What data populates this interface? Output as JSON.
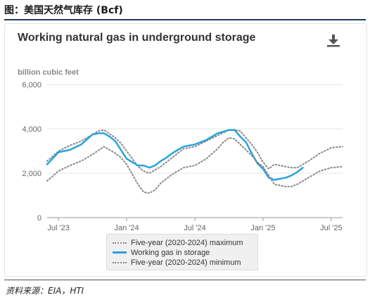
{
  "figure_title": "图：美国天然气库存 (Bcf)",
  "source": "资料来源：EIA，HTI",
  "icons": {
    "download": "download-icon"
  },
  "colors": {
    "storage_line": "#29a3dd",
    "range_lines": "#888888",
    "grid": "#e6e6e6",
    "axis_text": "#666666"
  },
  "chart_data": {
    "type": "line",
    "title": "Working natural gas in underground storage",
    "ylabel": "billion cubic feet",
    "ylim": [
      0,
      6000
    ],
    "yticks": [
      0,
      2000,
      4000,
      6000
    ],
    "ytick_labels": [
      "0",
      "2,000",
      "4,000",
      "6,000"
    ],
    "xlim": [
      0,
      26
    ],
    "xticks": [
      {
        "label": "Jul '23",
        "x": 1
      },
      {
        "label": "Jan '24",
        "x": 7
      },
      {
        "label": "Jul '24",
        "x": 13
      },
      {
        "label": "Jan '25",
        "x": 19
      },
      {
        "label": "Jul '25",
        "x": 25
      }
    ],
    "grid": true,
    "legend_position": "bottom",
    "series": [
      {
        "name": "Five-year (2020-2024) maximum",
        "style": "dotted",
        "x": [
          0,
          1,
          2,
          3,
          4,
          4.5,
          5,
          6,
          6.5,
          7,
          7.5,
          8,
          8.5,
          9,
          10,
          11,
          12,
          13,
          14,
          15,
          16,
          16.5,
          17,
          17.5,
          18,
          18.5,
          19,
          19.5,
          20,
          20.5,
          21,
          21.5,
          22,
          23,
          24,
          25,
          26
        ],
        "y": [
          2550,
          3000,
          3250,
          3450,
          3750,
          3900,
          3950,
          3600,
          3350,
          3000,
          2650,
          2300,
          2100,
          2000,
          2300,
          2700,
          3100,
          3200,
          3450,
          3700,
          3950,
          3950,
          3900,
          3600,
          3300,
          2950,
          2500,
          2200,
          2400,
          2350,
          2300,
          2250,
          2250,
          2550,
          2900,
          3150,
          3200
        ]
      },
      {
        "name": "Working gas in storage",
        "style": "solid",
        "x": [
          0,
          1,
          2,
          3,
          4,
          4.5,
          5,
          5.5,
          6,
          6.5,
          7,
          7.5,
          8,
          8.5,
          9,
          9.5,
          10,
          10.5,
          11,
          12,
          13,
          14,
          15,
          16,
          16.5,
          17,
          17.5,
          18,
          18.5,
          19,
          19.5,
          20,
          20.5,
          21,
          21.5,
          22,
          22.5
        ],
        "y": [
          2400,
          2950,
          3050,
          3300,
          3750,
          3800,
          3800,
          3650,
          3450,
          3050,
          2650,
          2500,
          2350,
          2350,
          2250,
          2350,
          2550,
          2700,
          2900,
          3200,
          3300,
          3500,
          3800,
          3950,
          3950,
          3650,
          3400,
          2900,
          2450,
          2200,
          1800,
          1700,
          1750,
          1800,
          1900,
          2050,
          2250
        ]
      },
      {
        "name": "Five-year (2020-2024) minimum",
        "style": "dotted",
        "x": [
          0,
          1,
          2,
          3,
          4,
          5,
          6,
          6.5,
          7,
          7.5,
          8,
          8.5,
          9,
          9.5,
          10,
          11,
          12,
          13,
          14,
          15,
          15.5,
          16,
          16.5,
          17,
          17.5,
          18,
          18.5,
          19,
          19.5,
          20,
          20.5,
          21,
          21.5,
          22,
          23,
          24,
          25,
          26
        ],
        "y": [
          1650,
          2100,
          2350,
          2550,
          2850,
          3200,
          2900,
          2700,
          2400,
          1950,
          1500,
          1150,
          1100,
          1250,
          1550,
          1950,
          2250,
          2350,
          2650,
          3100,
          3400,
          3600,
          3550,
          3300,
          3050,
          2800,
          2500,
          2300,
          1900,
          1500,
          1450,
          1400,
          1400,
          1500,
          1800,
          2100,
          2250,
          2300
        ]
      }
    ]
  }
}
